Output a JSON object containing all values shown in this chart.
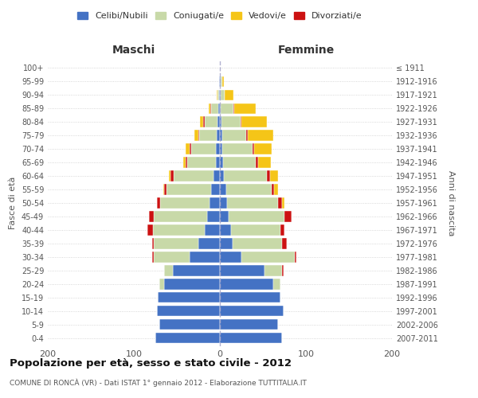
{
  "title_main": "Popolazione per età, sesso e stato civile - 2012",
  "title_sub": "COMUNE DI RONCÀ (VR) - Dati ISTAT 1° gennaio 2012 - Elaborazione TUTTITALIA.IT",
  "ylabel_left": "Fasce di età",
  "ylabel_right": "Anni di nascita",
  "xlabel_left": "Maschi",
  "xlabel_right": "Femmine",
  "age_groups": [
    "0-4",
    "5-9",
    "10-14",
    "15-19",
    "20-24",
    "25-29",
    "30-34",
    "35-39",
    "40-44",
    "45-49",
    "50-54",
    "55-59",
    "60-64",
    "65-69",
    "70-74",
    "75-79",
    "80-84",
    "85-89",
    "90-94",
    "95-99",
    "100+"
  ],
  "birth_years": [
    "2007-2011",
    "2002-2006",
    "1997-2001",
    "1992-1996",
    "1987-1991",
    "1982-1986",
    "1977-1981",
    "1972-1976",
    "1967-1971",
    "1962-1966",
    "1957-1961",
    "1952-1956",
    "1947-1951",
    "1942-1946",
    "1937-1941",
    "1932-1936",
    "1927-1931",
    "1922-1926",
    "1917-1921",
    "1912-1916",
    "≤ 1911"
  ],
  "colors": {
    "celibi": "#4472C4",
    "coniugati": "#c8d9a8",
    "vedovi": "#f5c518",
    "divorziati": "#cc1111"
  },
  "legend_labels": [
    "Celibi/Nubili",
    "Coniugati/e",
    "Vedovi/e",
    "Divorziati/e"
  ],
  "males": {
    "celibi": [
      75,
      70,
      73,
      72,
      65,
      55,
      35,
      25,
      18,
      15,
      12,
      10,
      7,
      5,
      5,
      4,
      3,
      2,
      1,
      1,
      0
    ],
    "coniugati": [
      0,
      0,
      0,
      0,
      5,
      10,
      42,
      52,
      60,
      62,
      57,
      52,
      47,
      33,
      28,
      20,
      15,
      8,
      2,
      0,
      0
    ],
    "vedovi": [
      0,
      0,
      0,
      0,
      0,
      0,
      0,
      0,
      0,
      0,
      0,
      1,
      2,
      3,
      5,
      5,
      4,
      2,
      1,
      0,
      0
    ],
    "divorziati": [
      0,
      0,
      0,
      0,
      0,
      0,
      2,
      2,
      6,
      5,
      4,
      3,
      3,
      2,
      2,
      1,
      1,
      1,
      0,
      0,
      0
    ]
  },
  "females": {
    "nubili": [
      72,
      68,
      74,
      70,
      62,
      52,
      25,
      15,
      13,
      10,
      8,
      7,
      5,
      4,
      3,
      3,
      2,
      1,
      1,
      1,
      0
    ],
    "coniugati": [
      0,
      0,
      0,
      0,
      8,
      20,
      62,
      57,
      57,
      65,
      60,
      53,
      50,
      38,
      35,
      28,
      22,
      15,
      5,
      2,
      0
    ],
    "vedovi": [
      0,
      0,
      0,
      0,
      0,
      0,
      0,
      0,
      0,
      0,
      3,
      5,
      10,
      15,
      20,
      30,
      30,
      25,
      10,
      2,
      0
    ],
    "divorziati": [
      0,
      0,
      0,
      0,
      0,
      2,
      2,
      6,
      5,
      8,
      4,
      3,
      3,
      2,
      2,
      1,
      1,
      1,
      0,
      0,
      0
    ]
  },
  "xlim": 200,
  "background_color": "#ffffff",
  "grid_color": "#cccccc"
}
